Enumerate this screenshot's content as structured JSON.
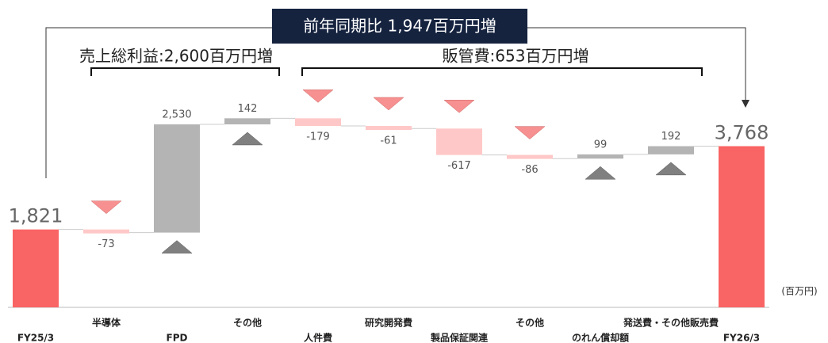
{
  "chart_data": {
    "type": "waterfall",
    "headline": "前年同期比 1,947百万円増",
    "annotations": [
      "売上総利益:2,600百万円増",
      "販管費:653百万円増"
    ],
    "unit_label": "(百万円)",
    "categories": [
      "FY25/3",
      "半導体",
      "FPD",
      "その他",
      "人件費",
      "研究開発費",
      "製品保証関連",
      "その他",
      "のれん償却額",
      "発送費・その他販売費",
      "FY26/3"
    ],
    "values": [
      1821,
      -73,
      2530,
      142,
      -179,
      -61,
      -617,
      -86,
      99,
      192,
      3768
    ],
    "value_labels": [
      "1,821",
      "-73",
      "2,530",
      "142",
      "-179",
      "-61",
      "-617",
      "-86",
      "99",
      "192",
      "3,768"
    ],
    "colors": {
      "total": "#f96464",
      "increase": "#b4b4b4",
      "decrease": "#ffc8c8"
    }
  }
}
